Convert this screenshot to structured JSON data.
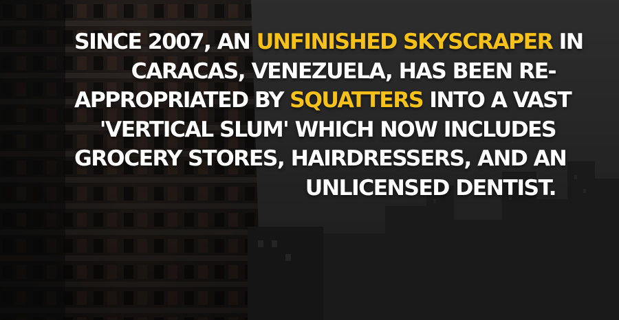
{
  "caption": {
    "line1": {
      "pre": "SINCE 2007, AN ",
      "hl": "UNFINISHED SKYSCRAPER",
      "post": " IN"
    },
    "line2": "CARACAS, VENEZUELA, HAS BEEN RE-",
    "line3": {
      "pre": "APPROPRIATED BY ",
      "hl": "SQUATTERS",
      "post": " INTO A VAST"
    },
    "line4": "'VERTICAL SLUM' WHICH NOW INCLUDES",
    "line5": "GROCERY STORES, HAIRDRESSERS, AND AN",
    "line6": "UNLICENSED DENTIST."
  },
  "colors": {
    "text": "#ffffff",
    "highlight": "#f6c21a"
  }
}
